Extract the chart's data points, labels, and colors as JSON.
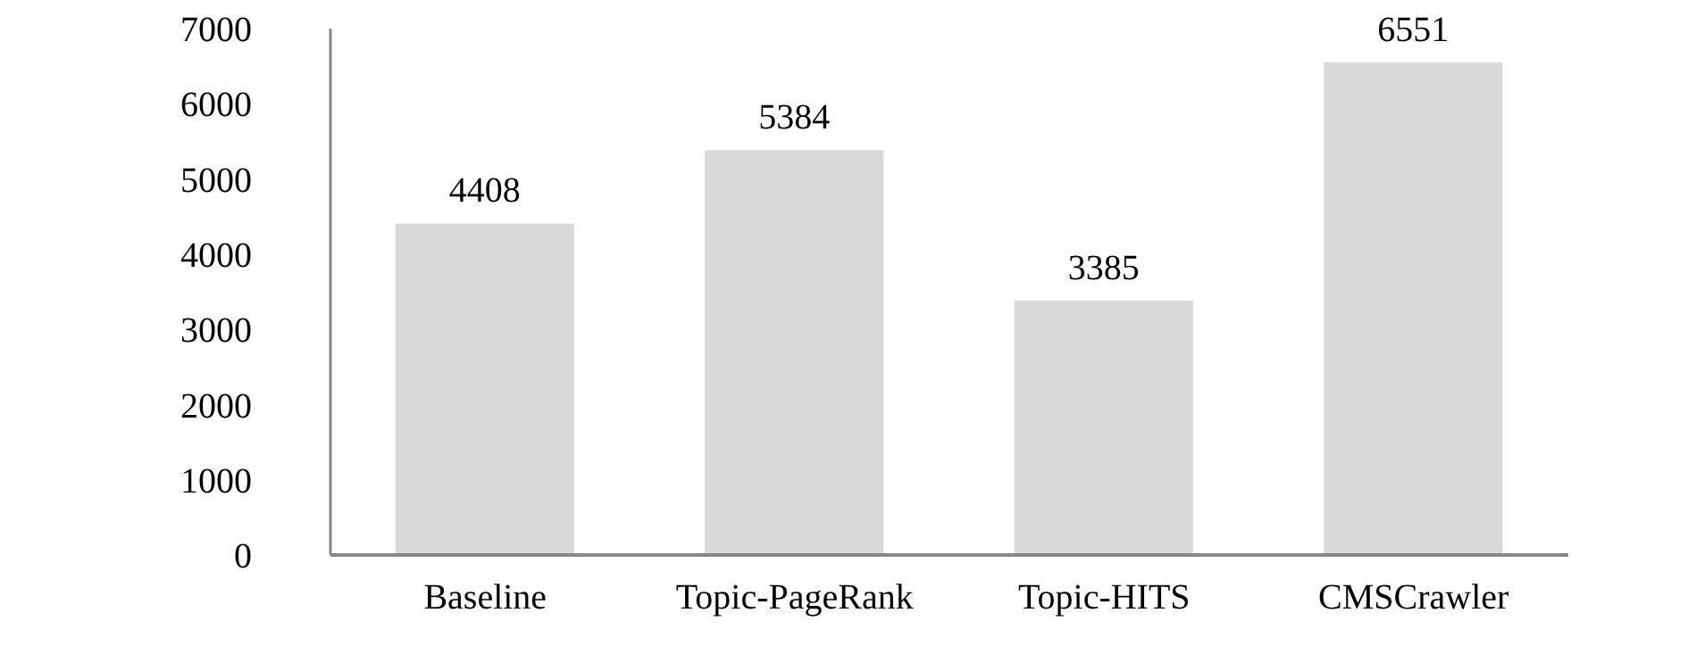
{
  "chart_data": {
    "type": "bar",
    "categories": [
      "Baseline",
      "Topic-PageRank",
      "Topic-HITS",
      "CMSCrawler"
    ],
    "values": [
      4408,
      5384,
      3385,
      6551
    ],
    "color": "#d9d9d9",
    "ylim": [
      0,
      7000
    ],
    "yticks": [
      0,
      1000,
      2000,
      3000,
      4000,
      5000,
      6000,
      7000
    ],
    "grid": false,
    "data_labels": true
  }
}
